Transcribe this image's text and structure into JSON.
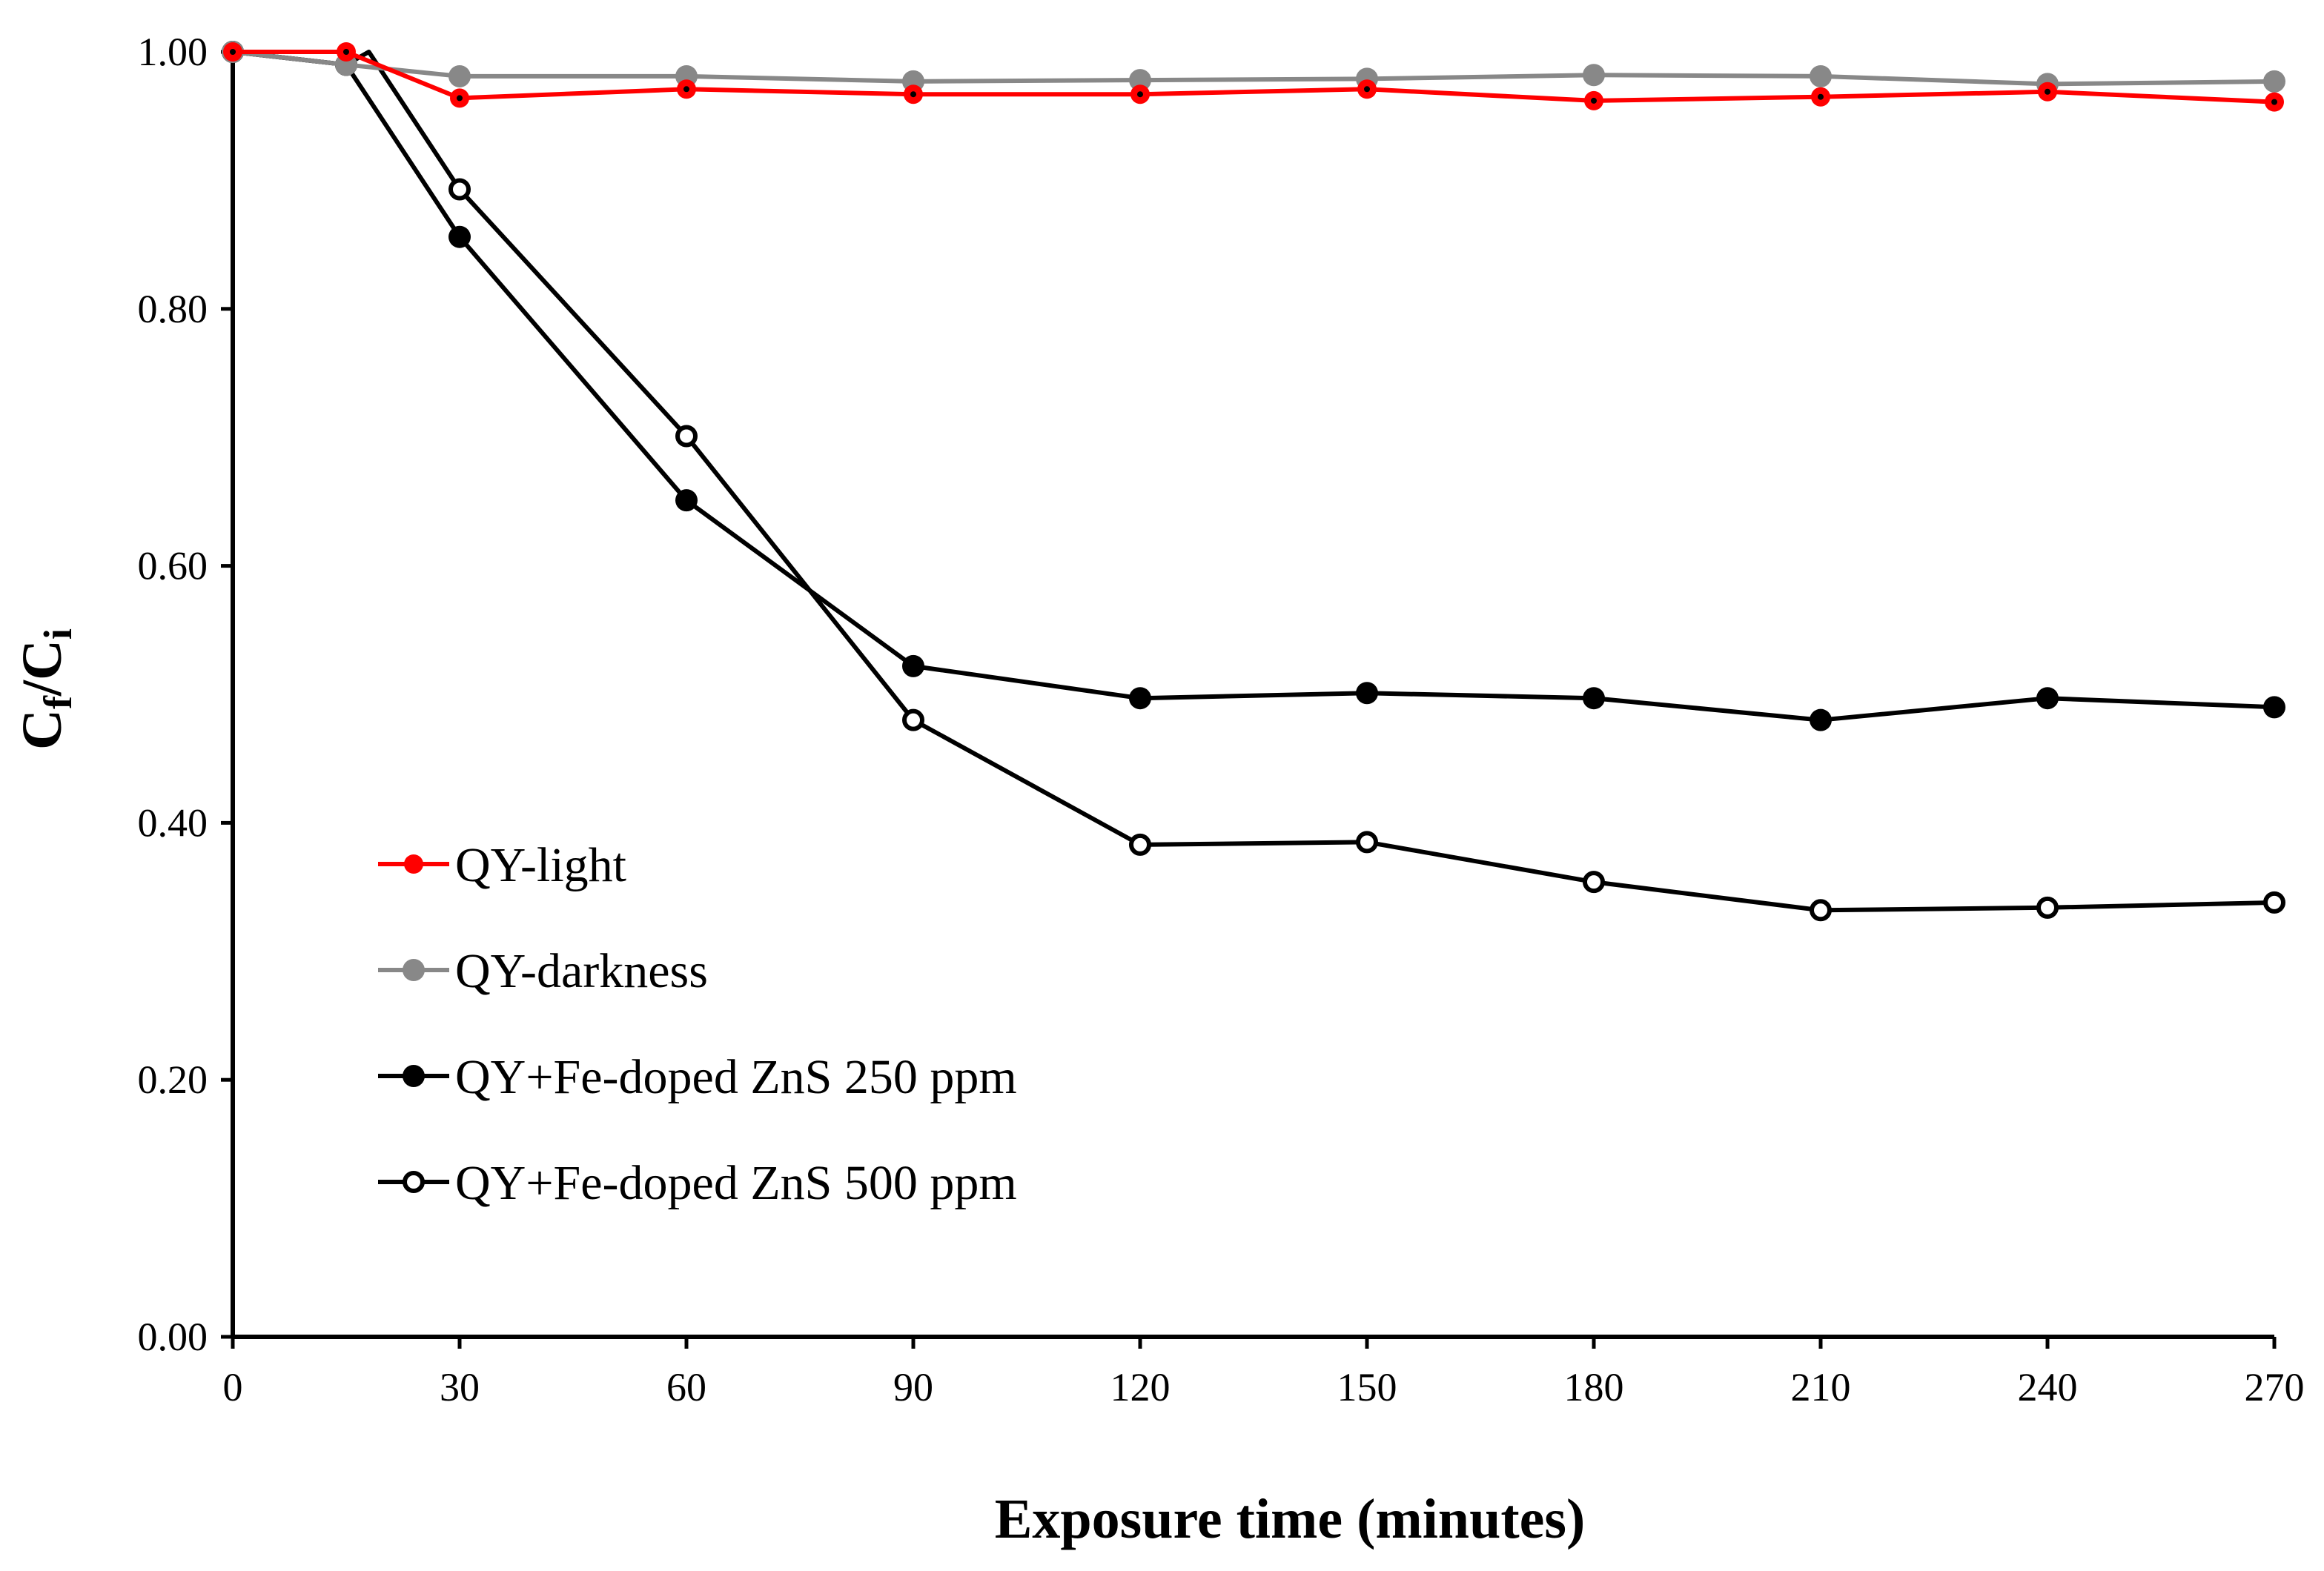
{
  "chart_data": {
    "type": "line",
    "title": "",
    "xlabel": "Exposure time (minutes)",
    "ylabel_main": "C",
    "ylabel_sub1": "f",
    "ylabel_sep": "/C",
    "ylabel_sub2": "i",
    "xlim": [
      0,
      270
    ],
    "ylim": [
      0,
      1.0
    ],
    "x_ticks": [
      0,
      30,
      60,
      90,
      120,
      150,
      180,
      210,
      240,
      270
    ],
    "x_tick_labels": [
      "0",
      "30",
      "60",
      "90",
      "120",
      "150",
      "180",
      "210",
      "240",
      "270"
    ],
    "y_ticks": [
      0,
      0.2,
      0.4,
      0.6,
      0.8,
      1.0
    ],
    "y_tick_labels": [
      "0.00",
      "0.20",
      "0.40",
      "0.60",
      "0.80",
      "1.00"
    ],
    "grid": false,
    "legend_position": "lower-left",
    "series": [
      {
        "name": "QY-light",
        "color": "#ff0000",
        "marker": "small-dot",
        "x": [
          0,
          15,
          30,
          60,
          90,
          120,
          150,
          180,
          210,
          240,
          270
        ],
        "y": [
          1.0,
          1.0,
          0.964,
          0.971,
          0.967,
          0.967,
          0.971,
          0.962,
          0.965,
          0.969,
          0.961
        ]
      },
      {
        "name": "QY-darkness",
        "color": "#888888",
        "marker": "filled",
        "x": [
          0,
          15,
          30,
          60,
          90,
          120,
          150,
          180,
          210,
          240,
          270
        ],
        "y": [
          1.0,
          0.99,
          0.981,
          0.981,
          0.977,
          0.978,
          0.979,
          0.982,
          0.981,
          0.975,
          0.977
        ]
      },
      {
        "name": "QY+Fe-doped ZnS 250 ppm",
        "color": "#000000",
        "marker": "filled",
        "x": [
          0,
          15,
          30,
          60,
          90,
          120,
          150,
          180,
          210,
          240,
          270
        ],
        "y": [
          1.0,
          0.99,
          0.856,
          0.651,
          0.522,
          0.497,
          0.501,
          0.497,
          0.48,
          0.497,
          0.49
        ]
      },
      {
        "name": "QY+Fe-doped ZnS 500 ppm",
        "color": "#000000",
        "marker": "hollow",
        "x": [
          0,
          15,
          18,
          30,
          60,
          90,
          120,
          150,
          180,
          210,
          240,
          270
        ],
        "y": [
          1.0,
          0.99,
          1.0,
          0.893,
          0.701,
          0.48,
          0.383,
          0.385,
          0.354,
          0.332,
          0.334,
          0.338
        ]
      }
    ]
  }
}
